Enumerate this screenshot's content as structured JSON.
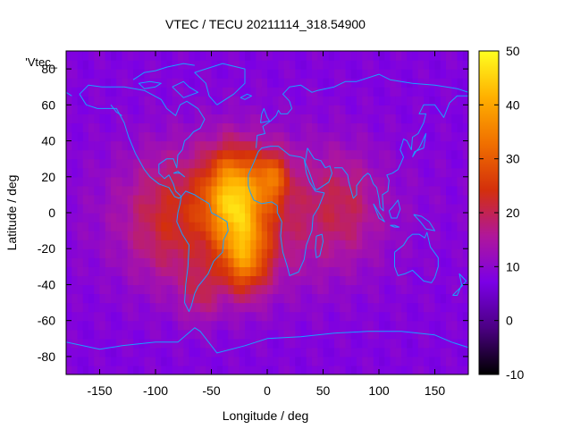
{
  "chart_data": {
    "type": "heatmap",
    "title": "VTEC / TECU 20211114_318.54900",
    "xlabel": "Longitude / deg",
    "ylabel": "Latitude / deg",
    "xlim": [
      -180,
      180
    ],
    "ylim": [
      -90,
      90
    ],
    "x_ticks": [
      -150,
      -100,
      -50,
      0,
      50,
      100,
      150
    ],
    "y_ticks": [
      -80,
      -60,
      -40,
      -20,
      0,
      20,
      40,
      60,
      80
    ],
    "colorbar": {
      "range": [
        -10,
        50
      ],
      "ticks": [
        -10,
        0,
        10,
        20,
        30,
        40,
        50
      ],
      "palette": [
        "#000000",
        "#4b0082",
        "#7b00e6",
        "#b0179a",
        "#d4300b",
        "#f07000",
        "#ffb000",
        "#ffff20"
      ]
    },
    "key_label": "'Vtec_",
    "overlay": "coastlines",
    "coastline_color": "#1aa0ff",
    "background_level": 8,
    "grid": false,
    "field_maxima": [
      {
        "lon": -30,
        "lat": 10,
        "value": 48
      },
      {
        "lon": -20,
        "lat": -25,
        "value": 38
      },
      {
        "lon": -35,
        "lat": 2,
        "value": 36
      },
      {
        "lon": 5,
        "lat": 20,
        "value": 38
      }
    ]
  }
}
